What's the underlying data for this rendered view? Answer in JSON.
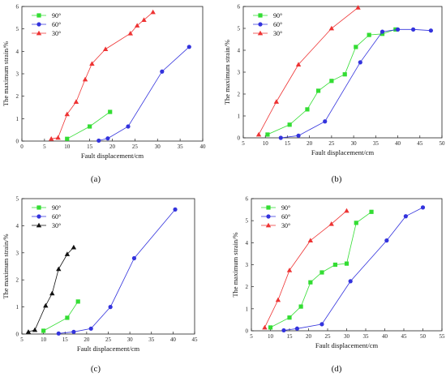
{
  "chart_data": [
    {
      "type": "line",
      "panel_label": "(a)",
      "xlabel": "Fault displacement/cm",
      "ylabel": "The maximum strain/%",
      "xlim": [
        0,
        40
      ],
      "ylim": [
        0,
        6
      ],
      "xticks": [
        0,
        5,
        10,
        15,
        20,
        25,
        30,
        35,
        40
      ],
      "yticks": [
        0,
        1,
        2,
        3,
        4,
        5,
        6
      ],
      "legend": "top-left",
      "series": [
        {
          "name": "90°",
          "color": "#33dd33",
          "marker": "square",
          "x": [
            10,
            15,
            19.5
          ],
          "y": [
            0.1,
            0.65,
            1.3
          ]
        },
        {
          "name": "60°",
          "color": "#3333dd",
          "marker": "circle",
          "x": [
            17,
            19,
            23.5,
            31,
            37
          ],
          "y": [
            0.02,
            0.12,
            0.65,
            3.1,
            4.2
          ]
        },
        {
          "name": "30°",
          "color": "#ee3333",
          "marker": "triangle",
          "x": [
            6.5,
            8,
            10,
            12,
            14,
            15.5,
            18.5,
            24,
            25.5,
            27,
            29
          ],
          "y": [
            0.1,
            0.15,
            1.2,
            1.75,
            2.75,
            3.45,
            4.1,
            4.8,
            5.15,
            5.4,
            5.75
          ]
        }
      ]
    },
    {
      "type": "line",
      "panel_label": "(b)",
      "xlabel": "Fault displacement/cm",
      "ylabel": "The maximum strain/%",
      "xlim": [
        5,
        50
      ],
      "ylim": [
        0,
        6
      ],
      "xticks": [
        5,
        10,
        15,
        20,
        25,
        30,
        35,
        40,
        45,
        50
      ],
      "yticks": [
        0,
        1,
        2,
        3,
        4,
        5,
        6
      ],
      "legend": "top-left",
      "series": [
        {
          "name": "90°",
          "color": "#33dd33",
          "marker": "square",
          "x": [
            10.5,
            15.5,
            19.5,
            22,
            25,
            28,
            30.5,
            33.5,
            36.5,
            39.5
          ],
          "y": [
            0.15,
            0.6,
            1.3,
            2.15,
            2.6,
            2.9,
            4.15,
            4.7,
            4.75,
            4.95
          ]
        },
        {
          "name": "60°",
          "color": "#3333dd",
          "marker": "circle",
          "x": [
            13.5,
            17.5,
            23.5,
            31.5,
            36.5,
            40,
            43.5,
            47.5
          ],
          "y": [
            0,
            0.1,
            0.75,
            3.45,
            4.85,
            4.95,
            4.95,
            4.9
          ]
        },
        {
          "name": "30°",
          "color": "#ee3333",
          "marker": "triangle",
          "x": [
            8.5,
            12.5,
            17.5,
            25,
            31
          ],
          "y": [
            0.15,
            1.65,
            3.35,
            5.0,
            5.95
          ]
        }
      ]
    },
    {
      "type": "line",
      "panel_label": "(c)",
      "xlabel": "Fault displacement/cm",
      "ylabel": "The maximum strain/%",
      "xlim": [
        5,
        45
      ],
      "ylim": [
        0,
        5
      ],
      "xticks": [
        5,
        10,
        15,
        20,
        25,
        30,
        35,
        40,
        45
      ],
      "yticks": [
        0,
        1,
        2,
        3,
        4,
        5
      ],
      "legend": "top-left",
      "series": [
        {
          "name": "90°",
          "color": "#33dd33",
          "marker": "square",
          "x": [
            10,
            15.5,
            18
          ],
          "y": [
            0.12,
            0.6,
            1.2
          ]
        },
        {
          "name": "60°",
          "color": "#3333dd",
          "marker": "circle",
          "x": [
            13.5,
            17,
            21,
            25.5,
            31,
            40.5
          ],
          "y": [
            0.02,
            0.08,
            0.2,
            1.0,
            2.8,
            4.6
          ]
        },
        {
          "name": "30°",
          "color": "#111111",
          "marker": "triangle",
          "x": [
            6.5,
            8,
            10.5,
            12,
            13.5,
            15.5,
            17
          ],
          "y": [
            0.08,
            0.15,
            1.05,
            1.5,
            2.4,
            2.95,
            3.2
          ]
        }
      ]
    },
    {
      "type": "line",
      "panel_label": "(d)",
      "xlabel": "Fault displacement/cm",
      "ylabel": "The maximum strain/%",
      "xlim": [
        5,
        55
      ],
      "ylim": [
        0,
        6
      ],
      "xticks": [
        5,
        10,
        15,
        20,
        25,
        30,
        35,
        40,
        45,
        50,
        55
      ],
      "yticks": [
        0,
        1,
        2,
        3,
        4,
        5,
        6
      ],
      "legend": "top-left",
      "series": [
        {
          "name": "90°",
          "color": "#33dd33",
          "marker": "square",
          "x": [
            10,
            15,
            18,
            20.5,
            23.5,
            27,
            30,
            32.5,
            36.5
          ],
          "y": [
            0.15,
            0.6,
            1.1,
            2.2,
            2.65,
            3.0,
            3.05,
            4.9,
            5.4
          ]
        },
        {
          "name": "60°",
          "color": "#3333dd",
          "marker": "circle",
          "x": [
            13.5,
            17,
            23.5,
            31,
            40.5,
            45.5,
            50
          ],
          "y": [
            0.02,
            0.1,
            0.3,
            2.25,
            4.1,
            5.2,
            5.6
          ]
        },
        {
          "name": "30°",
          "color": "#ee3333",
          "marker": "triangle",
          "x": [
            8.5,
            12,
            15,
            20.5,
            26,
            30
          ],
          "y": [
            0.15,
            1.4,
            2.75,
            4.1,
            4.85,
            5.45
          ]
        }
      ]
    }
  ]
}
